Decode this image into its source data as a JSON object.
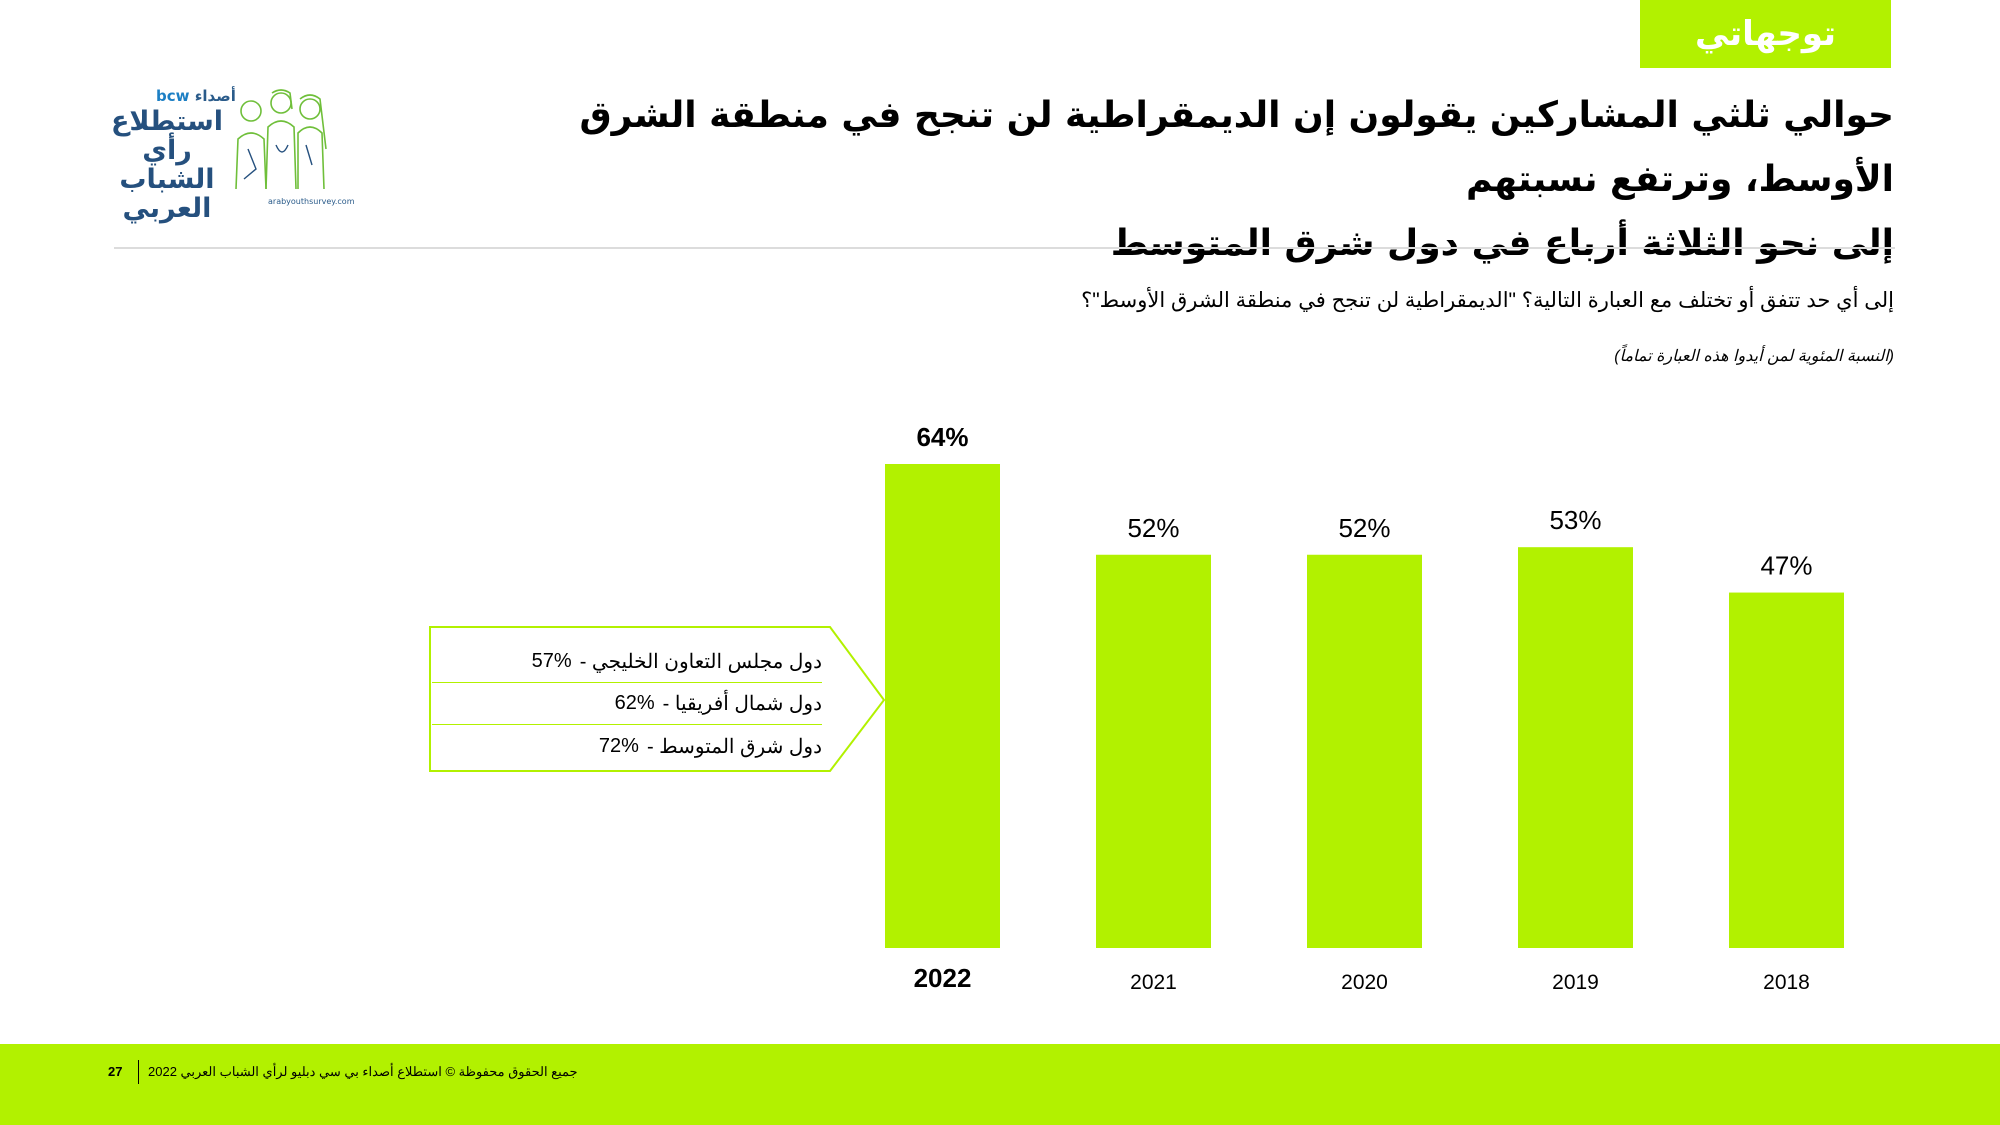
{
  "header": {
    "section_tag": "توجهاتي",
    "headline_line1": "حوالي ثلثي المشاركين يقولون إن الديمقراطية لن تنجح في منطقة الشرق الأوسط، وترتفع نسبتهم",
    "headline_line2": "إلى نحو الثلاثة أرباع في دول شرق المتوسط"
  },
  "logo": {
    "brand_ar": "أصداء",
    "brand_en": "bcw",
    "title": "استطلاع رأي الشباب العربي",
    "url": "arabyouthsurvey.com"
  },
  "question": "إلى أي حد تتفق أو تختلف مع العبارة التالية؟ \"الديمقراطية لن تنجح في منطقة الشرق الأوسط\"؟",
  "note": "(النسبة المئوية لمن أيدوا هذه العبارة تماماً)",
  "callout": {
    "rows": [
      {
        "label": "دول مجلس التعاون الخليجي -",
        "value": "57%"
      },
      {
        "label": "دول شمال أفريقيا -",
        "value": "62%"
      },
      {
        "label": "دول شرق المتوسط -",
        "value": "72%"
      }
    ]
  },
  "chart_data": {
    "type": "bar",
    "categories": [
      "2022",
      "2021",
      "2020",
      "2019",
      "2018"
    ],
    "values": [
      64,
      52,
      52,
      53,
      47
    ],
    "value_labels": [
      "64%",
      "52%",
      "52%",
      "53%",
      "47%"
    ],
    "highlight_category": "2022",
    "ylim": [
      0,
      64
    ],
    "color": "#b2f100",
    "grid": false,
    "legend": "none"
  },
  "footer": {
    "page_number": "27",
    "copyright": "جميع الحقوق محفوظة © استطلاع أصداء بي سي دبليو لرأي الشباب العربي 2022"
  },
  "colors": {
    "accent": "#b2f100",
    "logo_blue": "#25507e",
    "logo_green": "#6fbf3a"
  }
}
